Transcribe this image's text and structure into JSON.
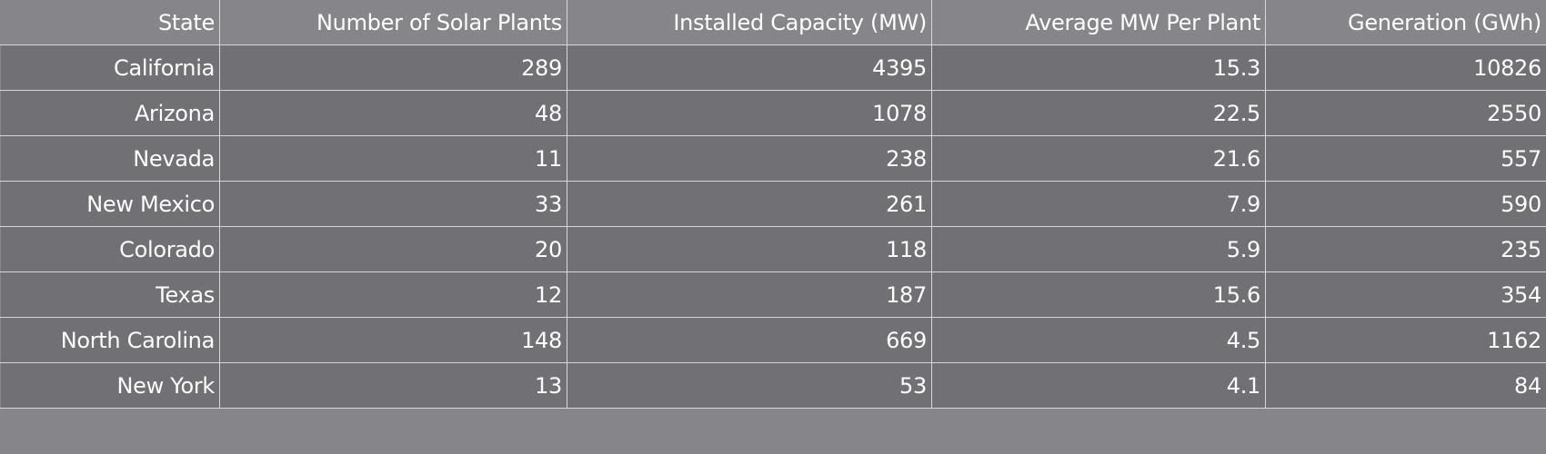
{
  "chart_data": {
    "type": "table",
    "columns": [
      "State",
      "Number of Solar Plants",
      "Installed Capacity (MW)",
      "Average MW Per Plant",
      "Generation (GWh)"
    ],
    "rows": [
      [
        "California",
        "289",
        "4395",
        "15.3",
        "10826"
      ],
      [
        "Arizona",
        "48",
        "1078",
        "22.5",
        "2550"
      ],
      [
        "Nevada",
        "11",
        "238",
        "21.6",
        "557"
      ],
      [
        "New Mexico",
        "33",
        "261",
        "7.9",
        "590"
      ],
      [
        "Colorado",
        "20",
        "118",
        "5.9",
        "235"
      ],
      [
        "Texas",
        "12",
        "187",
        "15.6",
        "354"
      ],
      [
        "North Carolina",
        "148",
        "669",
        "4.5",
        "1162"
      ],
      [
        "New York",
        "13",
        "53",
        "4.1",
        "84"
      ]
    ]
  },
  "colors": {
    "header_background": "#868589",
    "row_background": "#717074",
    "grid_lines": "#d8d8da",
    "text": "#ffffff"
  }
}
